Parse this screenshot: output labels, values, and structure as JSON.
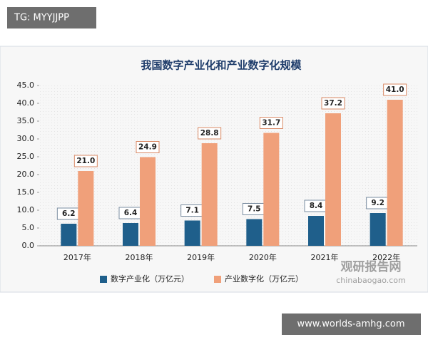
{
  "badges": {
    "top_left": "TG: MYYJJPP",
    "bottom_right": "www.worlds-amhg.com"
  },
  "watermark": {
    "name": "观研报告网",
    "url": "chinabaogao.com"
  },
  "chart_data": {
    "type": "bar",
    "title": "我国数字产业化和产业数字化规模",
    "categories": [
      "2017年",
      "2018年",
      "2019年",
      "2020年",
      "2021年",
      "2022年"
    ],
    "series": [
      {
        "name": "数字产业化（万亿元）",
        "color": "#1f5f8b",
        "values": [
          6.2,
          6.4,
          7.1,
          7.5,
          8.4,
          9.2
        ],
        "value_labels": [
          "6.2",
          "6.4",
          "7.1",
          "7.5",
          "8.4",
          "9.2"
        ]
      },
      {
        "name": "产业数字化（万亿元）",
        "color": "#f0a07a",
        "values": [
          21.0,
          24.9,
          28.8,
          31.7,
          37.2,
          41.0
        ],
        "value_labels": [
          "21.0",
          "24.9",
          "28.8",
          "31.7",
          "37.2",
          "41.0"
        ]
      }
    ],
    "ylim": [
      0,
      45
    ],
    "yticks": [
      {
        "value": 0,
        "label": "0.0"
      },
      {
        "value": 5,
        "label": "5.0"
      },
      {
        "value": 10,
        "label": "10.0"
      },
      {
        "value": 15,
        "label": "15.0"
      },
      {
        "value": 20,
        "label": "20.0"
      },
      {
        "value": 25,
        "label": "25.0"
      },
      {
        "value": 30,
        "label": "30.0"
      },
      {
        "value": 35,
        "label": "35.0"
      },
      {
        "value": 40,
        "label": "40.0"
      },
      {
        "value": 45,
        "label": "45.0"
      }
    ],
    "legend": "bottom"
  }
}
